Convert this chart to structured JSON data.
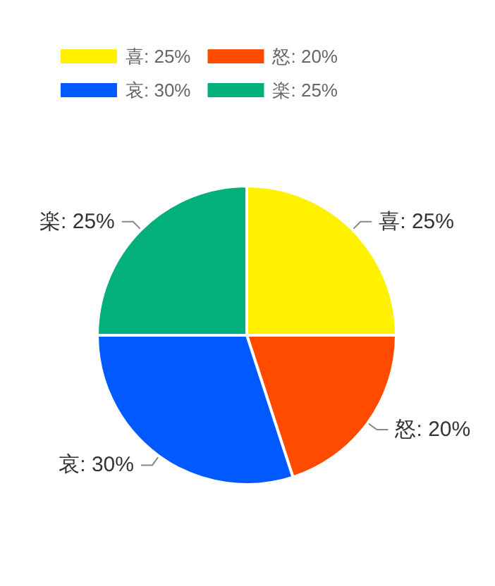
{
  "chart_data": {
    "type": "pie",
    "categories": [
      "喜",
      "怒",
      "哀",
      "楽"
    ],
    "values": [
      25,
      20,
      30,
      25
    ],
    "value_labels": [
      "25%",
      "20%",
      "30%",
      "25%"
    ],
    "colors": [
      "#fff100",
      "#ff4b00",
      "#005aff",
      "#03af7a"
    ],
    "legend": "top left"
  }
}
